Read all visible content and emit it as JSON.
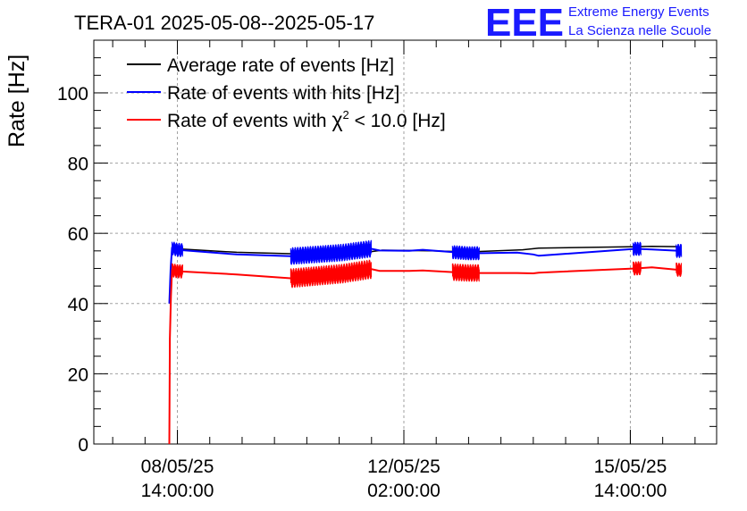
{
  "header": {
    "title": "TERA-01 2025-05-08--2025-05-17",
    "brand_logo": "EEE",
    "brand_line1": "Extreme Energy Events",
    "brand_line2": "La Scienza nelle Scuole"
  },
  "chart_data": {
    "type": "line",
    "title": "TERA-01 2025-05-08--2025-05-17",
    "xlabel": "",
    "ylabel": "Rate [Hz]",
    "ylim": [
      0,
      115
    ],
    "xlim": [
      -17,
      214
    ],
    "x_unit": "hours since 08/05/25 00:00:00",
    "yticks": [
      0,
      20,
      40,
      60,
      80,
      100
    ],
    "xtick_labels": [
      {
        "line1": "08/05/25",
        "line2": "14:00:00"
      },
      {
        "line1": "12/05/25",
        "line2": "02:00:00"
      },
      {
        "line1": "15/05/25",
        "line2": "14:00:00"
      }
    ],
    "grid": true,
    "legend_position": "top-left",
    "series": [
      {
        "name": "Average rate of events [Hz]",
        "color": "#000000",
        "points": [
          [
            14,
            55.6
          ],
          [
            36,
            54.6
          ],
          [
            56,
            54.2
          ],
          [
            82,
            54.4
          ],
          [
            90,
            55.2
          ],
          [
            108,
            55.0
          ],
          [
            122,
            54.7
          ],
          [
            142,
            55.3
          ],
          [
            148,
            55.8
          ],
          [
            184,
            56.2
          ],
          [
            190,
            56.3
          ],
          [
            200,
            56.2
          ]
        ]
      },
      {
        "name": "Rate of events with hits [Hz]",
        "color": "#0000ff",
        "points": [
          [
            11,
            40
          ],
          [
            11.5,
            50
          ],
          [
            12,
            55.8
          ],
          [
            14,
            55.3
          ],
          [
            36,
            54.0
          ],
          [
            56,
            53.5
          ],
          [
            75,
            54.5
          ],
          [
            86,
            55.6
          ],
          [
            89,
            55.1
          ],
          [
            100,
            55.0
          ],
          [
            105,
            55.3
          ],
          [
            122,
            54.3
          ],
          [
            140,
            54.5
          ],
          [
            146,
            54.0
          ],
          [
            148,
            53.6
          ],
          [
            184,
            55.6
          ],
          [
            190,
            55.4
          ],
          [
            200,
            55.0
          ]
        ],
        "noisy_segments": [
          [
            12,
            16,
            2.0
          ],
          [
            56,
            86,
            2.5
          ],
          [
            116,
            126,
            2.0
          ],
          [
            183,
            186,
            2.0
          ],
          [
            199,
            201,
            2.0
          ]
        ]
      },
      {
        "name": "Rate of events with χ² < 10.0 [Hz]",
        "color": "#ff0000",
        "points": [
          [
            11,
            0
          ],
          [
            11.2,
            30
          ],
          [
            11.6,
            42
          ],
          [
            12,
            49.5
          ],
          [
            14,
            49.2
          ],
          [
            36,
            48.3
          ],
          [
            56,
            47.2
          ],
          [
            75,
            48.5
          ],
          [
            86,
            49.8
          ],
          [
            89,
            49.3
          ],
          [
            100,
            49.3
          ],
          [
            105,
            49.4
          ],
          [
            122,
            48.7
          ],
          [
            140,
            48.7
          ],
          [
            146,
            48.6
          ],
          [
            148,
            48.8
          ],
          [
            184,
            50.0
          ],
          [
            190,
            50.3
          ],
          [
            200,
            49.6
          ]
        ],
        "noisy_segments": [
          [
            12,
            16,
            2.0
          ],
          [
            56,
            86,
            2.8
          ],
          [
            116,
            126,
            2.5
          ],
          [
            183,
            186,
            2.0
          ],
          [
            199,
            201,
            2.0
          ]
        ]
      }
    ],
    "legend": [
      {
        "label": "Average rate of events [Hz]",
        "color": "#000000"
      },
      {
        "label": "Rate of events with hits [Hz]",
        "color": "#0000ff"
      },
      {
        "label_prefix": "Rate of events with ",
        "chi_symbol": "χ",
        "chi_power": "2",
        "label_suffix": " < 10.0 [Hz]",
        "color": "#ff0000"
      }
    ]
  }
}
